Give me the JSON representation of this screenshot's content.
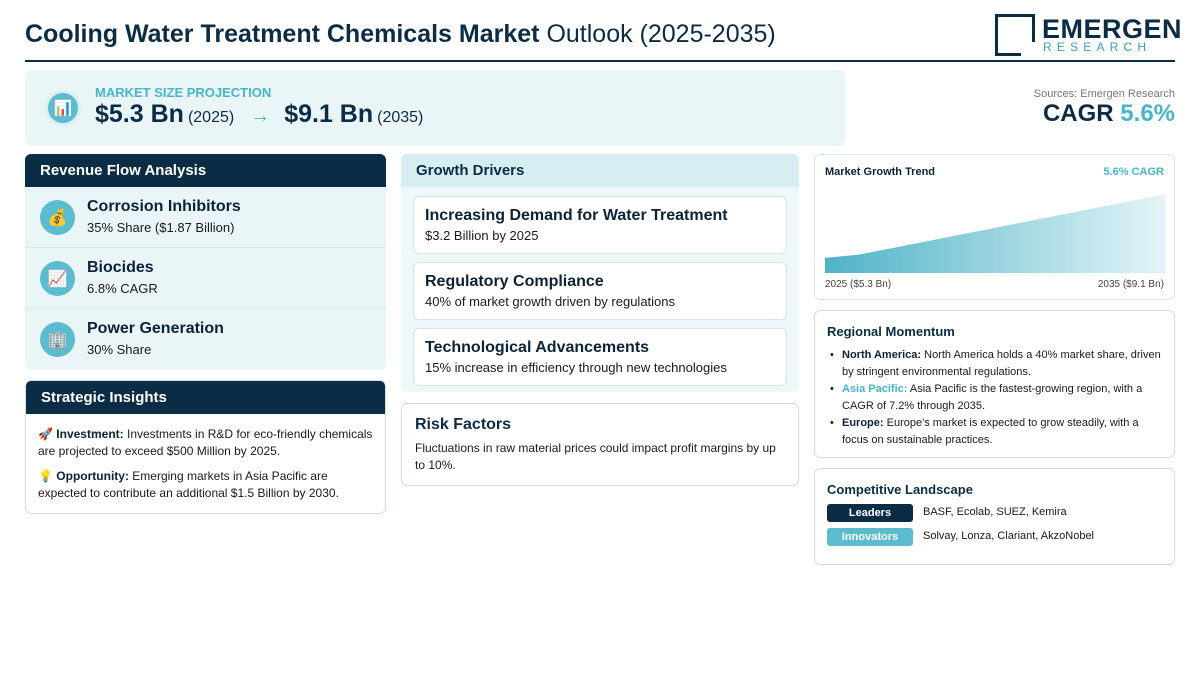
{
  "header": {
    "title_bold": "Cooling Water Treatment Chemicals Market",
    "title_rest": "Outlook (2025-2035)",
    "logo_main": "EMERGEN",
    "logo_sub": "RESEARCH"
  },
  "projection": {
    "label": "MARKET SIZE PROJECTION",
    "icon": "bar-chart-icon",
    "start_value": "$5.3 Bn",
    "start_year": "(2025)",
    "arrow": "→",
    "end_value": "$9.1 Bn",
    "end_year": "(2035)"
  },
  "sources": "Sources: Emergen Research",
  "cagr": {
    "label": "CAGR",
    "value": "5.6%"
  },
  "revenue_flow": {
    "title": "Revenue Flow Analysis",
    "items": [
      {
        "icon": "money-bag-icon",
        "glyph": "💰",
        "name": "Corrosion Inhibitors",
        "desc": "35% Share ($1.87 Billion)"
      },
      {
        "icon": "trend-chart-icon",
        "glyph": "📈",
        "name": "Biocides",
        "desc": "6.8% CAGR"
      },
      {
        "icon": "building-icon",
        "glyph": "🏢",
        "name": "Power Generation",
        "desc": "30% Share"
      }
    ]
  },
  "insights": {
    "title": "Strategic Insights",
    "items": [
      {
        "glyph": "🚀",
        "label": "Investment:",
        "text": "Investments in R&D for eco-friendly chemicals are projected to exceed $500 Million by 2025."
      },
      {
        "glyph": "💡",
        "label": "Opportunity:",
        "text": "Emerging markets in Asia Pacific are expected to contribute an additional $1.5 Billion by 2030."
      }
    ]
  },
  "drivers": {
    "title": "Growth Drivers",
    "items": [
      {
        "title": "Increasing Demand for Water Treatment",
        "desc": "$3.2 Billion by 2025"
      },
      {
        "title": "Regulatory Compliance",
        "desc": "40% of market growth driven by regulations"
      },
      {
        "title": "Technological Advancements",
        "desc": "15% increase in efficiency through new technologies"
      }
    ]
  },
  "risk": {
    "title": "Risk Factors",
    "desc": "Fluctuations in raw material prices could impact profit margins by up to 10%."
  },
  "chart_data": {
    "type": "area",
    "title": "Market Growth Trend",
    "annotation": "5.6% CAGR",
    "x": [
      2025,
      2026,
      2035
    ],
    "values": [
      5.3,
      5.5,
      9.1
    ],
    "x_start_label": "2025 ($5.3 Bn)",
    "x_end_label": "2035 ($9.1 Bn)",
    "ylim": [
      4.4,
      9.3
    ],
    "colors": {
      "fill_start": "#4fb3c7",
      "fill_end": "#e3f4f8"
    }
  },
  "regional": {
    "title": "Regional Momentum",
    "items": [
      {
        "name": "North America:",
        "accent": false,
        "text": "North America holds a 40% market share, driven by stringent environmental regulations."
      },
      {
        "name": "Asia Pacific:",
        "accent": true,
        "text": "Asia Pacific is the fastest-growing region, with a CAGR of 7.2% through 2035."
      },
      {
        "name": "Europe:",
        "accent": false,
        "text": "Europe's market is expected to grow steadily, with a focus on sustainable practices."
      }
    ]
  },
  "competitive": {
    "title": "Competitive Landscape",
    "rows": [
      {
        "tag": "Leaders",
        "companies": "BASF, Ecolab, SUEZ, Kemira"
      },
      {
        "tag": "Innovators",
        "companies": "Solvay, Lonza, Clariant, AkzoNobel"
      }
    ]
  },
  "colors": {
    "navy": "#0b2c45",
    "teal": "#47b6c9",
    "panel": "#eaf5f8"
  }
}
